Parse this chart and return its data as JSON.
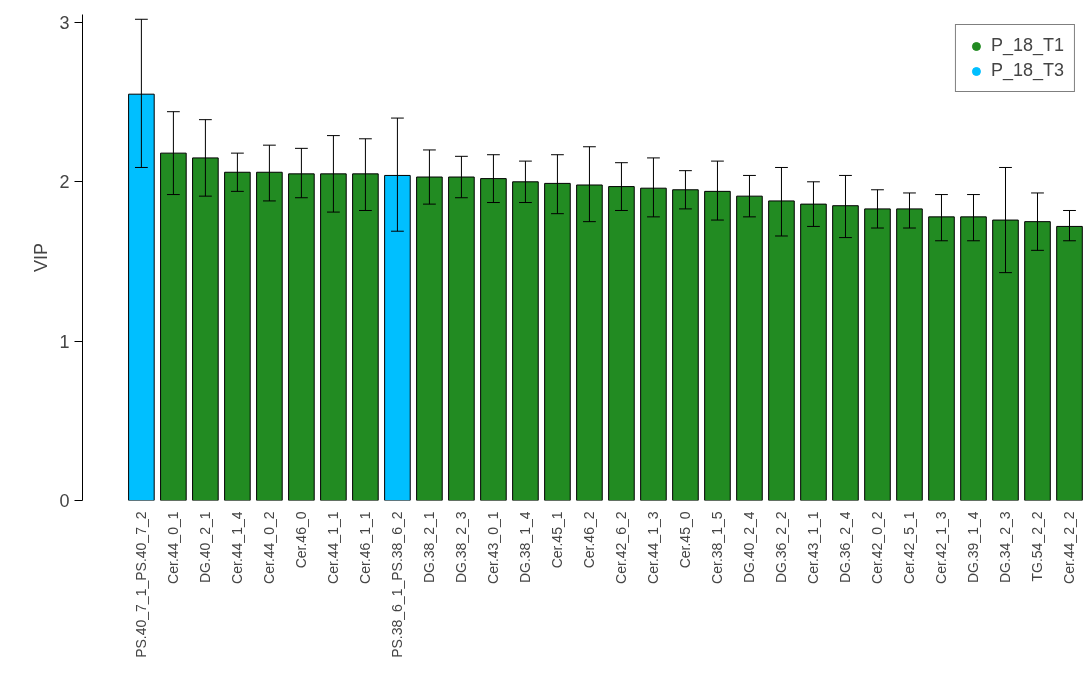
{
  "chart_data": {
    "type": "bar",
    "ylabel": "VIP",
    "categories": [
      "PS.40_7_1_PS.40_7_2",
      "Cer.44_0_1",
      "DG.40_2_1",
      "Cer.44_1_4",
      "Cer.44_0_2",
      "Cer.46_0",
      "Cer.44_1_1",
      "Cer.46_1_1",
      "PS.38_6_1_PS.38_6_2",
      "DG.38_2_1",
      "DG.38_2_3",
      "Cer.43_0_1",
      "DG.38_1_4",
      "Cer.45_1",
      "Cer.46_2",
      "Cer.42_6_2",
      "Cer.44_1_3",
      "Cer.45_0",
      "Cer.38_1_5",
      "DG.40_2_4",
      "DG.36_2_2",
      "Cer.43_1_1",
      "DG.36_2_4",
      "Cer.42_0_2",
      "Cer.42_5_1",
      "Cer.42_1_3",
      "DG.39_1_4",
      "DG.34_2_3",
      "TG.54_2_2",
      "Cer.44_2_2"
    ],
    "series": [
      {
        "name": "P_18_T1",
        "color": "#228b22",
        "values": [
          null,
          2.18,
          2.15,
          2.06,
          2.06,
          2.05,
          2.05,
          2.05,
          null,
          2.03,
          2.03,
          2.02,
          2.0,
          1.99,
          1.98,
          1.97,
          1.96,
          1.95,
          1.94,
          1.91,
          1.88,
          1.86,
          1.85,
          1.83,
          1.83,
          1.78,
          1.78,
          1.76,
          1.75,
          1.72
        ],
        "errors": [
          null,
          [
            1.92,
            2.44
          ],
          [
            1.91,
            2.39
          ],
          [
            1.94,
            2.18
          ],
          [
            1.88,
            2.23
          ],
          [
            1.9,
            2.21
          ],
          [
            1.81,
            2.29
          ],
          [
            1.82,
            2.27
          ],
          null,
          [
            1.86,
            2.2
          ],
          [
            1.9,
            2.16
          ],
          [
            1.87,
            2.17
          ],
          [
            1.87,
            2.13
          ],
          [
            1.8,
            2.17
          ],
          [
            1.75,
            2.22
          ],
          [
            1.82,
            2.12
          ],
          [
            1.78,
            2.15
          ],
          [
            1.83,
            2.07
          ],
          [
            1.76,
            2.13
          ],
          [
            1.78,
            2.04
          ],
          [
            1.66,
            2.09
          ],
          [
            1.72,
            2.0
          ],
          [
            1.65,
            2.04
          ],
          [
            1.71,
            1.95
          ],
          [
            1.71,
            1.93
          ],
          [
            1.63,
            1.92
          ],
          [
            1.63,
            1.92
          ],
          [
            1.43,
            2.09
          ],
          [
            1.57,
            1.93
          ],
          [
            1.63,
            1.82
          ]
        ]
      },
      {
        "name": "P_18_T3",
        "color": "#00bfff",
        "values": [
          2.55,
          null,
          null,
          null,
          null,
          null,
          null,
          null,
          2.04,
          null,
          null,
          null,
          null,
          null,
          null,
          null,
          null,
          null,
          null,
          null,
          null,
          null,
          null,
          null,
          null,
          null,
          null,
          null,
          null,
          null
        ],
        "errors": [
          [
            2.09,
            3.02
          ],
          null,
          null,
          null,
          null,
          null,
          null,
          null,
          [
            1.69,
            2.4
          ],
          null,
          null,
          null,
          null,
          null,
          null,
          null,
          null,
          null,
          null,
          null,
          null,
          null,
          null,
          null,
          null,
          null,
          null,
          null,
          null,
          null
        ]
      }
    ],
    "ylim": [
      0,
      3.05
    ],
    "yticks": [
      0,
      1,
      2,
      3
    ],
    "grid": false,
    "legend": "top right"
  }
}
